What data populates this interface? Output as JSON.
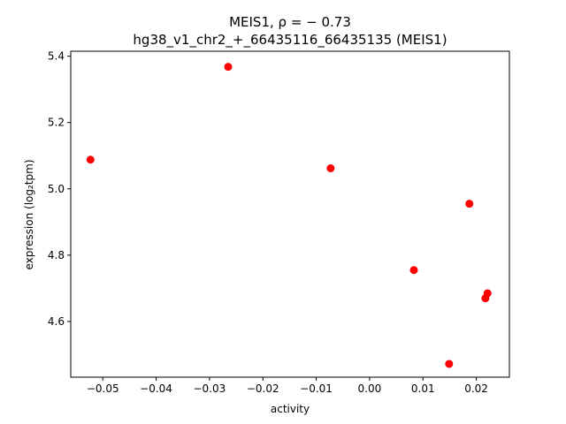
{
  "chart_data": {
    "type": "scatter",
    "title_line1": "MEIS1, ρ = − 0.73",
    "title_line2": "hg38_v1_chr2_+_66435116_66435135 (MEIS1)",
    "xlabel": "activity",
    "ylabel": "expression (log₂tpm)",
    "xlim": [
      -0.056,
      0.0262
    ],
    "ylim": [
      4.432,
      5.415
    ],
    "xticks": [
      -0.05,
      -0.04,
      -0.03,
      -0.02,
      -0.01,
      0.0,
      0.01,
      0.02
    ],
    "xtick_labels": [
      "−0.05",
      "−0.04",
      "−0.03",
      "−0.02",
      "−0.01",
      "0.00",
      "0.01",
      "0.02"
    ],
    "yticks": [
      4.6,
      4.8,
      5.0,
      5.2,
      5.4
    ],
    "ytick_labels": [
      "4.6",
      "4.8",
      "5.0",
      "5.2",
      "5.4"
    ],
    "point_color": "#ff0000",
    "grid": false,
    "points": [
      {
        "x": -0.0523,
        "y": 5.088
      },
      {
        "x": -0.0265,
        "y": 5.368
      },
      {
        "x": -0.0073,
        "y": 5.062
      },
      {
        "x": 0.0083,
        "y": 4.755
      },
      {
        "x": 0.0149,
        "y": 4.472
      },
      {
        "x": 0.0187,
        "y": 4.955
      },
      {
        "x": 0.0217,
        "y": 4.67
      },
      {
        "x": 0.0221,
        "y": 4.685
      }
    ]
  }
}
